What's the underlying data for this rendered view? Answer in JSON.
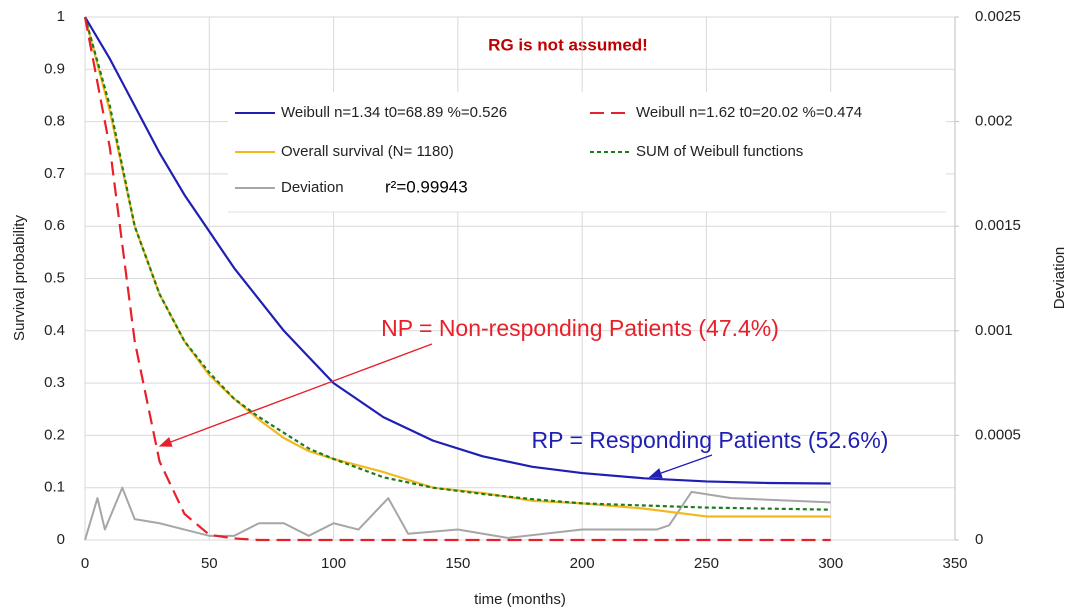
{
  "chart_data": {
    "type": "line",
    "title": "RG is not assumed!",
    "x_label": "time (months)",
    "y_label": "Survival probability",
    "y2_label": "Deviation",
    "xlim": [
      0,
      350
    ],
    "xticks": [
      0,
      50,
      100,
      150,
      200,
      250,
      300,
      350
    ],
    "ylim": [
      0,
      1
    ],
    "yticks": [
      0,
      0.1,
      0.2,
      0.3,
      0.4,
      0.5,
      0.6,
      0.7,
      0.8,
      0.9,
      1
    ],
    "y2lim": [
      0,
      0.0025
    ],
    "y2ticks": [
      0,
      0.0005,
      0.001,
      0.0015,
      0.002,
      0.0025
    ],
    "grid": true,
    "x": [
      0,
      10,
      20,
      30,
      40,
      50,
      60,
      70,
      80,
      90,
      100,
      120,
      140,
      160,
      180,
      200,
      225,
      250,
      275,
      300
    ],
    "series": [
      {
        "name": "Weibull n=1.34 t0=68.89 %=0.526",
        "color": "#1f1fb4",
        "linestyle": "solid",
        "values": [
          1,
          0.92,
          0.83,
          0.74,
          0.66,
          0.59,
          0.52,
          0.46,
          0.4,
          0.35,
          0.3,
          0.235,
          0.19,
          0.16,
          0.14,
          0.128,
          0.118,
          0.112,
          0.109,
          0.108
        ]
      },
      {
        "name": "Weibull n=1.62 t0=20.02 %=0.474",
        "color": "#e8202a",
        "linestyle": "dashed",
        "values": [
          1,
          0.75,
          0.38,
          0.15,
          0.05,
          0.01,
          0.003,
          0,
          0,
          0,
          0,
          0,
          0,
          0,
          0,
          0,
          0,
          0,
          0,
          0
        ]
      },
      {
        "name": "Overall survival (N= 1180)",
        "color": "#f2b81c",
        "linestyle": "solid",
        "values": [
          1,
          0.82,
          0.6,
          0.47,
          0.38,
          0.315,
          0.27,
          0.23,
          0.195,
          0.17,
          0.155,
          0.13,
          0.1,
          0.09,
          0.075,
          0.07,
          0.06,
          0.045,
          0.045,
          0.045
        ]
      },
      {
        "name": "SUM of Weibull functions",
        "color": "#1e7b1e",
        "linestyle": "dotted",
        "values": [
          1,
          0.83,
          0.6,
          0.47,
          0.38,
          0.32,
          0.27,
          0.235,
          0.205,
          0.175,
          0.155,
          0.12,
          0.1,
          0.088,
          0.078,
          0.07,
          0.066,
          0.062,
          0.06,
          0.058
        ]
      },
      {
        "name": "Deviation",
        "color": "#a6a6a6",
        "linestyle": "solid",
        "axis": "y2",
        "x": [
          0,
          5,
          8,
          15,
          20,
          30,
          40,
          50,
          60,
          70,
          80,
          90,
          100,
          110,
          122,
          130,
          150,
          170,
          200,
          230,
          235,
          244,
          260,
          300
        ],
        "values": [
          0,
          0.0002,
          5e-05,
          0.00025,
          0.0001,
          8e-05,
          5e-05,
          2e-05,
          2e-05,
          8e-05,
          8e-05,
          2e-05,
          8e-05,
          5e-05,
          0.0002,
          3e-05,
          5e-05,
          1e-05,
          5e-05,
          5e-05,
          7e-05,
          0.00023,
          0.0002,
          0.00018
        ]
      }
    ],
    "fit_label": "r²=0.99943",
    "annotations": [
      "NP = Non-responding Patients (47.4%)",
      "RP = Responding Patients (52.6%)"
    ]
  }
}
